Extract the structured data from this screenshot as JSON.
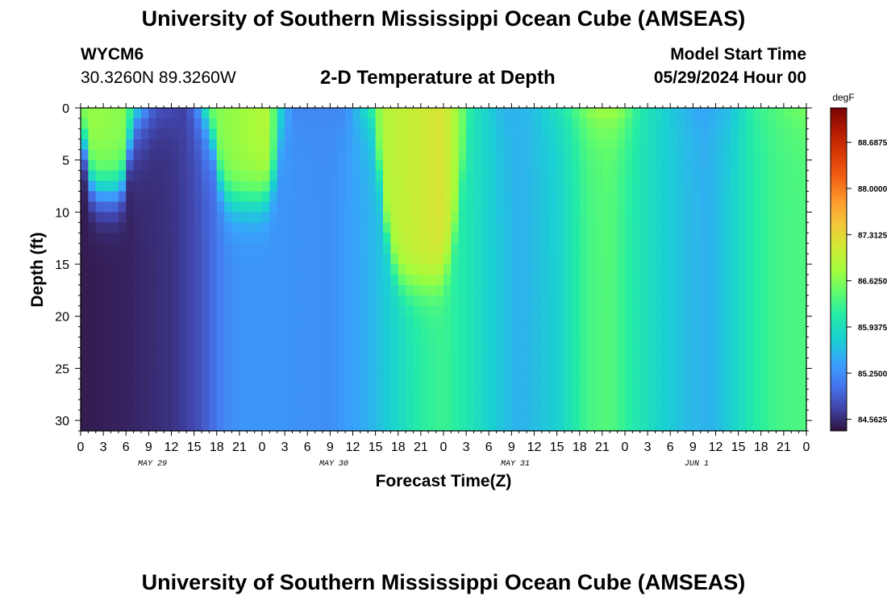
{
  "header": {
    "title": "University of Southern Mississippi Ocean Cube (AMSEAS)",
    "station": "WYCM6",
    "coordinates": "30.3260N  89.3260W",
    "subtitle": "2-D Temperature at Depth",
    "model_start_label": "Model Start Time",
    "model_start_value": "05/29/2024 Hour 00"
  },
  "footer": {
    "title": "University of Southern Mississippi Ocean Cube (AMSEAS)"
  },
  "chart_data": {
    "type": "heatmap",
    "title": "2-D Temperature at Depth",
    "xlabel": "Forecast Time(Z)",
    "ylabel": "Depth (ft)",
    "x_hours_range": [
      0,
      96
    ],
    "ylim": [
      0,
      31
    ],
    "x_tick_labels": [
      "0",
      "3",
      "6",
      "9",
      "12",
      "15",
      "18",
      "21",
      "0",
      "3",
      "6",
      "9",
      "12",
      "15",
      "18",
      "21",
      "0",
      "3",
      "6",
      "9",
      "12",
      "15",
      "18",
      "21",
      "0",
      "3",
      "6",
      "9",
      "12",
      "15",
      "18",
      "21",
      "0"
    ],
    "day_labels": [
      "MAY 29",
      "MAY 30",
      "MAY 31",
      "JUN 1"
    ],
    "y_ticks": [
      0,
      5,
      10,
      15,
      20,
      25,
      30
    ],
    "colorbar": {
      "unit": "degF",
      "range": [
        84.39,
        89.2
      ],
      "ticks": [
        "88.6875",
        "88.0000",
        "87.3125",
        "86.6250",
        "85.9375",
        "85.2500",
        "84.5625"
      ],
      "tick_values": [
        88.6875,
        88.0,
        87.3125,
        86.625,
        85.9375,
        85.25,
        84.5625
      ]
    },
    "bottom_temperature_degF_by_hour": [
      [
        0,
        84.45
      ],
      [
        6,
        84.5
      ],
      [
        12,
        84.6
      ],
      [
        15,
        84.75
      ],
      [
        17,
        84.95
      ],
      [
        19,
        85.2
      ],
      [
        21,
        85.3
      ],
      [
        27,
        85.3
      ],
      [
        33,
        85.25
      ],
      [
        38,
        85.5
      ],
      [
        42,
        85.85
      ],
      [
        45,
        86.15
      ],
      [
        48,
        86.25
      ],
      [
        51,
        86.05
      ],
      [
        55,
        85.7
      ],
      [
        58,
        85.5
      ],
      [
        63,
        85.75
      ],
      [
        67,
        86.3
      ],
      [
        70,
        86.4
      ],
      [
        73,
        86.1
      ],
      [
        76,
        85.85
      ],
      [
        80,
        85.6
      ],
      [
        83,
        85.5
      ],
      [
        86,
        85.75
      ],
      [
        89,
        86.1
      ],
      [
        92,
        86.3
      ],
      [
        96,
        86.35
      ]
    ],
    "surface_temperature_degF_by_hour": [
      [
        0,
        86.75
      ],
      [
        6,
        86.65
      ],
      [
        7,
        86.0
      ],
      [
        9,
        85.1
      ],
      [
        10,
        84.85
      ],
      [
        14,
        84.7
      ],
      [
        16,
        85.5
      ],
      [
        17,
        86.6
      ],
      [
        25,
        86.9
      ],
      [
        26,
        86.0
      ],
      [
        28,
        85.2
      ],
      [
        35,
        85.2
      ],
      [
        38,
        86.0
      ],
      [
        40,
        86.9
      ],
      [
        48,
        87.2
      ],
      [
        50,
        86.7
      ],
      [
        52,
        86.0
      ],
      [
        56,
        85.5
      ],
      [
        60,
        85.6
      ],
      [
        64,
        86.1
      ],
      [
        68,
        86.8
      ],
      [
        71,
        86.8
      ],
      [
        74,
        86.1
      ],
      [
        78,
        85.7
      ],
      [
        82,
        85.4
      ],
      [
        86,
        85.6
      ],
      [
        89,
        86.2
      ],
      [
        96,
        86.6
      ]
    ],
    "warm_surface_layer": [
      {
        "start_hour": 0,
        "end_hour": 7,
        "bottom_depth_ft": 8
      },
      {
        "start_hour": 17,
        "end_hour": 27,
        "bottom_depth_ft": 9
      },
      {
        "start_hour": 39,
        "end_hour": 51,
        "bottom_depth_ft": 17
      }
    ]
  }
}
